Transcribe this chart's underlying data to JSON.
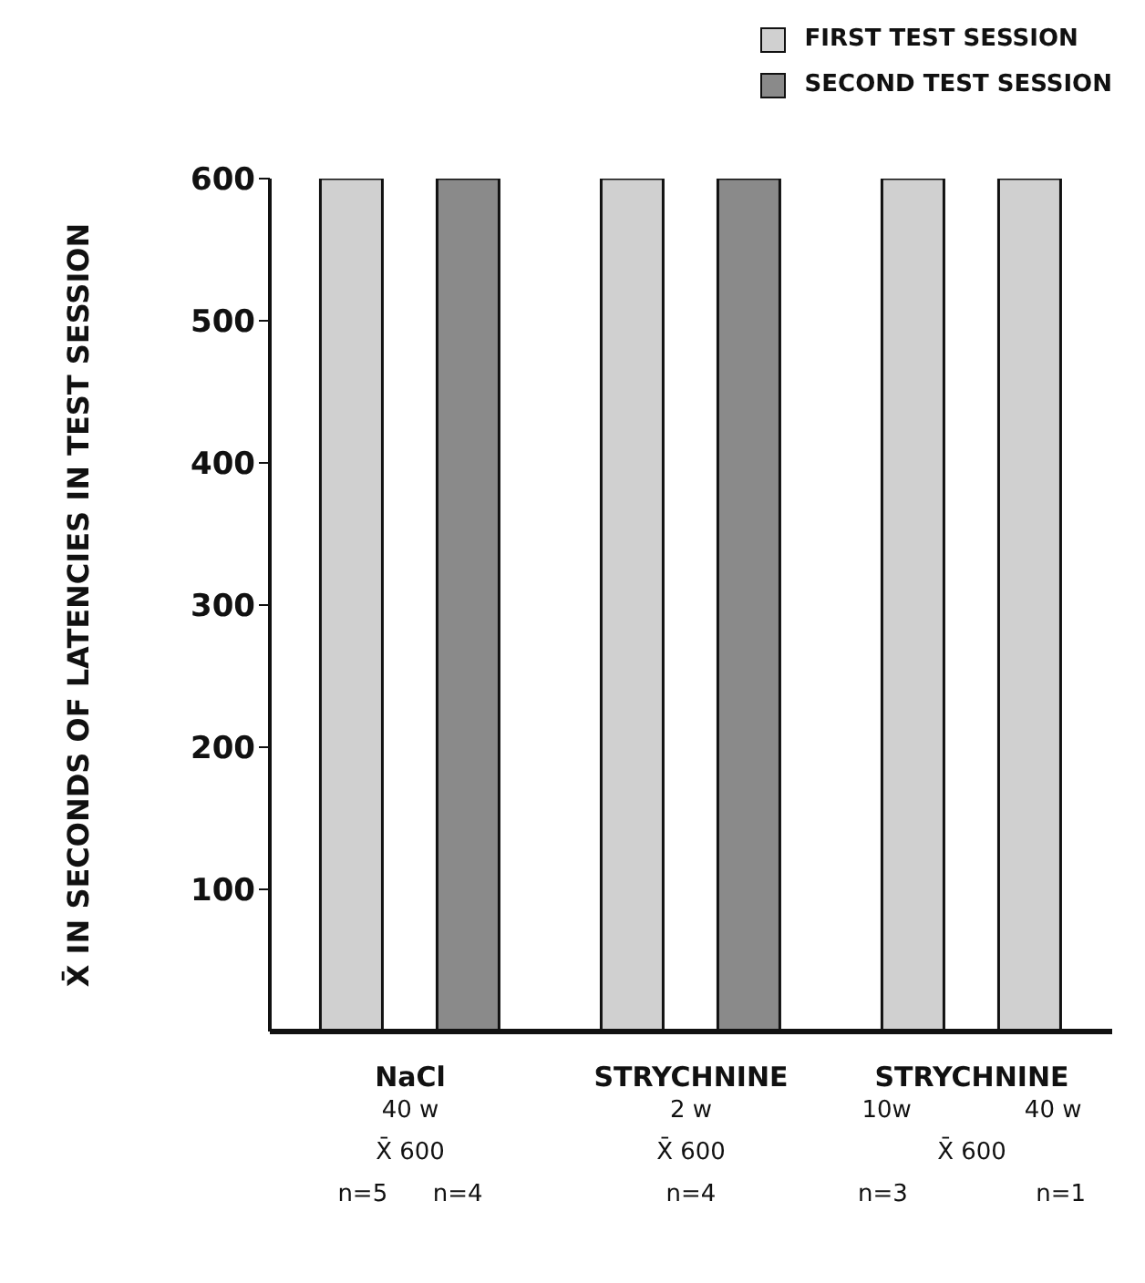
{
  "chart_data": {
    "type": "bar",
    "ylabel": "X̄ IN SECONDS OF LATENCIES IN TEST SESSION",
    "categories": [
      "NaCl\n40 w\nX̄ 600\nn=5      n=4",
      "STRYCHNINE\n2 w\nX̄ 600\nn=4",
      "STRYCHNINE\n10w               40 w\nX̄ 600\nn=3                 n=1"
    ],
    "series": [
      {
        "name": "FIRST TEST SESSION",
        "color": "#d0d0d0",
        "values": [
          600,
          600,
          600
        ]
      },
      {
        "name": "SECOND TEST SESSION",
        "color": "#8a8a8a",
        "colors": [
          "#8a8a8a",
          "#8a8a8a",
          "#d0d0d0"
        ],
        "values": [
          600,
          600,
          600
        ]
      }
    ],
    "ylim": [
      0,
      600
    ],
    "yticks": [
      100,
      200,
      300,
      400,
      500,
      600
    ],
    "grid": false,
    "legend": "top right"
  }
}
